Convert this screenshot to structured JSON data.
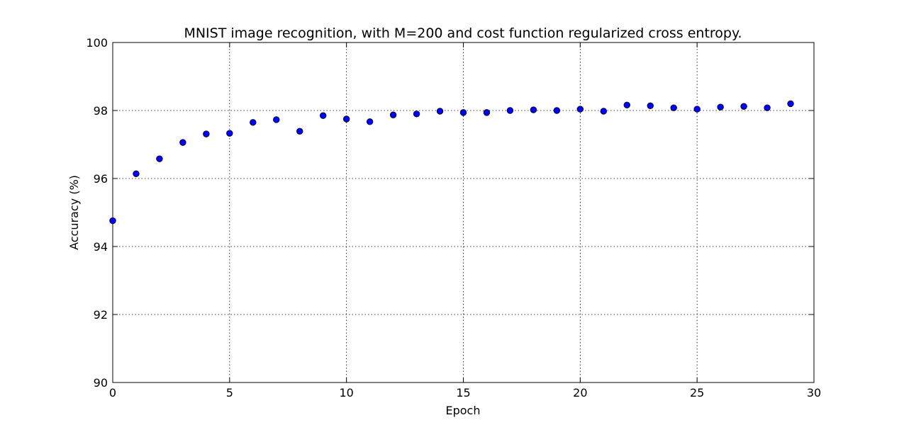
{
  "chart_data": {
    "type": "scatter",
    "title": "MNIST image recognition, with M=200 and cost function regularized cross entropy.",
    "xlabel": "Epoch",
    "ylabel": "Accuracy (%)",
    "xlim": [
      0,
      30
    ],
    "ylim": [
      90,
      100
    ],
    "xticks": [
      0,
      5,
      10,
      15,
      20,
      25,
      30
    ],
    "yticks": [
      90,
      92,
      94,
      96,
      98,
      100
    ],
    "grid": true,
    "marker_color": "#0000ff",
    "x": [
      0,
      1,
      2,
      3,
      4,
      5,
      6,
      7,
      8,
      9,
      10,
      11,
      12,
      13,
      14,
      15,
      16,
      17,
      18,
      19,
      20,
      21,
      22,
      23,
      24,
      25,
      26,
      27,
      28,
      29
    ],
    "y": [
      94.76,
      96.14,
      96.58,
      97.06,
      97.31,
      97.33,
      97.65,
      97.73,
      97.39,
      97.85,
      97.75,
      97.67,
      97.87,
      97.9,
      97.98,
      97.94,
      97.94,
      98.0,
      98.02,
      98.0,
      98.04,
      97.98,
      98.16,
      98.14,
      98.08,
      98.04,
      98.1,
      98.12,
      98.08,
      98.2
    ]
  }
}
